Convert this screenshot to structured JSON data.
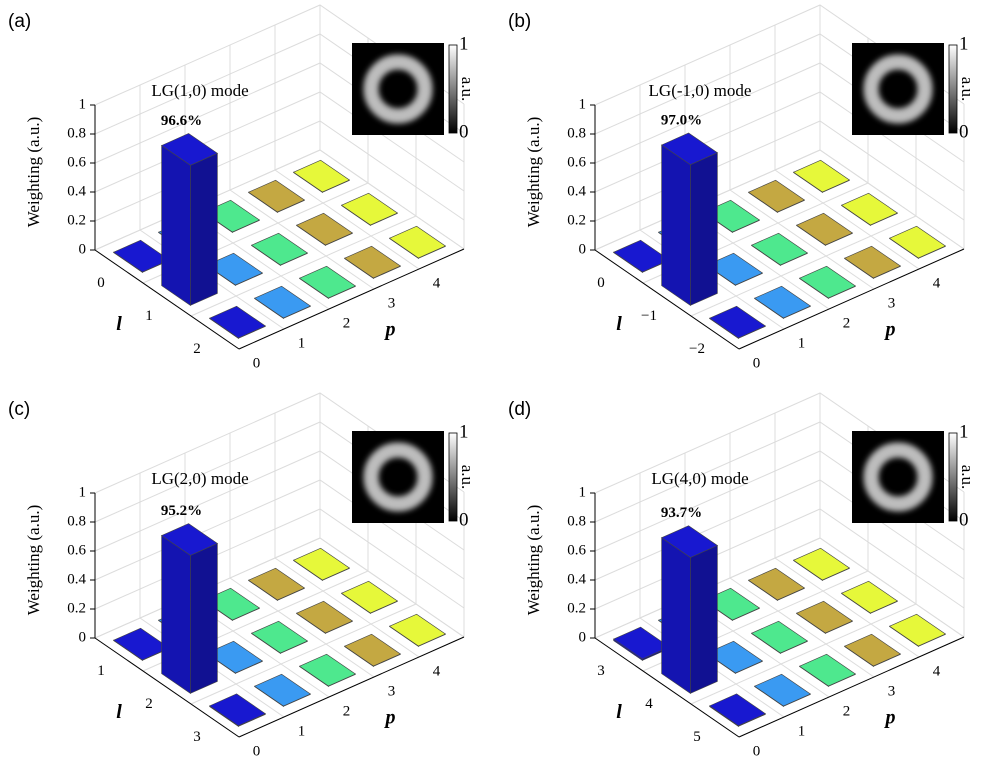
{
  "chart_data": [
    {
      "type": "bar3d",
      "label": "(a)",
      "title": "LG(1,0) mode",
      "z_label": "Weighting (a.u.)",
      "l_label": "l",
      "p_label": "p",
      "l_categories": [
        "0",
        "1",
        "2"
      ],
      "p_categories": [
        "0",
        "1",
        "2",
        "3",
        "4"
      ],
      "zlim": [
        0,
        1
      ],
      "zticks": [
        0,
        0.2,
        0.4,
        0.6,
        0.8,
        1
      ],
      "colors": [
        "#1818d0",
        "#3a9af2",
        "#4ee88e",
        "#c4a842",
        "#e6f83a"
      ],
      "values": [
        [
          0.003,
          0.003,
          0.003,
          0.003,
          0.003
        ],
        [
          0.966,
          0.003,
          0.003,
          0.003,
          0.003
        ],
        [
          0.003,
          0.003,
          0.003,
          0.003,
          0.003
        ]
      ],
      "value_labels": [
        [
          null,
          null,
          null,
          null,
          null
        ],
        [
          "96.6%",
          null,
          null,
          null,
          null
        ],
        [
          null,
          null,
          null,
          null,
          null
        ]
      ],
      "inset": {
        "colorbar_ticks": [
          0,
          1
        ],
        "colorbar_label": "a.u."
      }
    },
    {
      "type": "bar3d",
      "label": "(b)",
      "title": "LG(-1,0) mode",
      "z_label": "Weighting (a.u.)",
      "l_label": "l",
      "p_label": "p",
      "l_categories": [
        "0",
        "−1",
        "−2"
      ],
      "p_categories": [
        "0",
        "1",
        "2",
        "3",
        "4"
      ],
      "zlim": [
        0,
        1
      ],
      "zticks": [
        0,
        0.2,
        0.4,
        0.6,
        0.8,
        1
      ],
      "colors": [
        "#1818d0",
        "#3a9af2",
        "#4ee88e",
        "#c4a842",
        "#e6f83a"
      ],
      "values": [
        [
          0.003,
          0.003,
          0.003,
          0.003,
          0.003
        ],
        [
          0.97,
          0.003,
          0.003,
          0.003,
          0.003
        ],
        [
          0.003,
          0.003,
          0.003,
          0.003,
          0.003
        ]
      ],
      "value_labels": [
        [
          null,
          null,
          null,
          null,
          null
        ],
        [
          "97.0%",
          null,
          null,
          null,
          null
        ],
        [
          null,
          null,
          null,
          null,
          null
        ]
      ],
      "inset": {
        "colorbar_ticks": [
          0,
          1
        ],
        "colorbar_label": "a.u."
      }
    },
    {
      "type": "bar3d",
      "label": "(c)",
      "title": "LG(2,0) mode",
      "z_label": "Weighting (a.u.)",
      "l_label": "l",
      "p_label": "p",
      "l_categories": [
        "1",
        "2",
        "3"
      ],
      "p_categories": [
        "0",
        "1",
        "2",
        "3",
        "4"
      ],
      "zlim": [
        0,
        1
      ],
      "zticks": [
        0,
        0.2,
        0.4,
        0.6,
        0.8,
        1
      ],
      "colors": [
        "#1818d0",
        "#3a9af2",
        "#4ee88e",
        "#c4a842",
        "#e6f83a"
      ],
      "values": [
        [
          0.003,
          0.003,
          0.003,
          0.003,
          0.003
        ],
        [
          0.952,
          0.003,
          0.003,
          0.003,
          0.003
        ],
        [
          0.005,
          0.003,
          0.003,
          0.003,
          0.003
        ]
      ],
      "value_labels": [
        [
          null,
          null,
          null,
          null,
          null
        ],
        [
          "95.2%",
          null,
          null,
          null,
          null
        ],
        [
          null,
          null,
          null,
          null,
          null
        ]
      ],
      "inset": {
        "colorbar_ticks": [
          0,
          1
        ],
        "colorbar_label": "a.u."
      }
    },
    {
      "type": "bar3d",
      "label": "(d)",
      "title": "LG(4,0) mode",
      "z_label": "Weighting (a.u.)",
      "l_label": "l",
      "p_label": "p",
      "l_categories": [
        "3",
        "4",
        "5"
      ],
      "p_categories": [
        "0",
        "1",
        "2",
        "3",
        "4"
      ],
      "zlim": [
        0,
        1
      ],
      "zticks": [
        0,
        0.2,
        0.4,
        0.6,
        0.8,
        1
      ],
      "colors": [
        "#1818d0",
        "#3a9af2",
        "#4ee88e",
        "#c4a842",
        "#e6f83a"
      ],
      "values": [
        [
          0.01,
          0.003,
          0.003,
          0.003,
          0.003
        ],
        [
          0.937,
          0.003,
          0.003,
          0.003,
          0.003
        ],
        [
          0.005,
          0.003,
          0.003,
          0.003,
          0.003
        ]
      ],
      "value_labels": [
        [
          null,
          null,
          null,
          null,
          null
        ],
        [
          "93.7%",
          null,
          null,
          null,
          null
        ],
        [
          null,
          null,
          null,
          null,
          null
        ]
      ],
      "inset": {
        "colorbar_ticks": [
          0,
          1
        ],
        "colorbar_label": "a.u."
      }
    }
  ]
}
